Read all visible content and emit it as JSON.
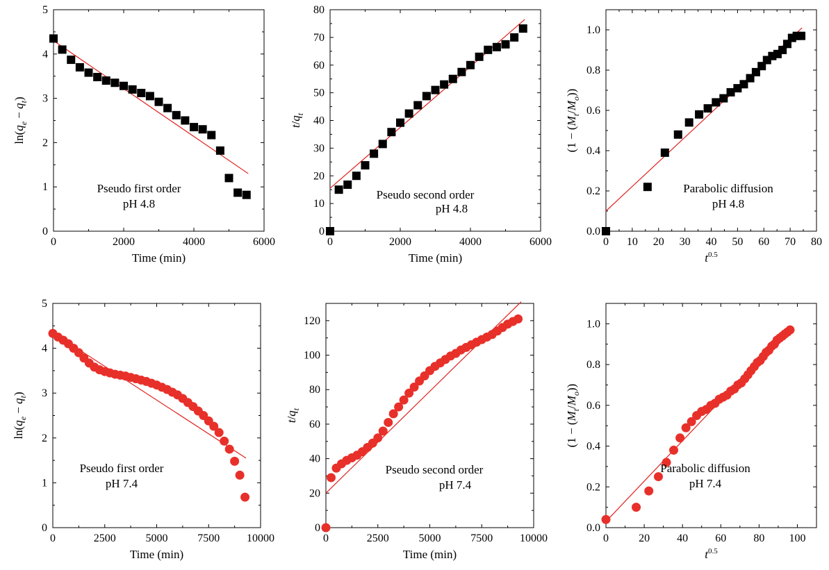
{
  "colors": {
    "series_pH48": "#000000",
    "series_pH74": "#e8302a",
    "fit_line": "#e0201c"
  },
  "chart_data": [
    {
      "type": "scatter",
      "marker": "square",
      "xlabel": "Time (min)",
      "ylabel": "ln(q_e − q_t)",
      "xlim": [
        0,
        6000
      ],
      "ylim": [
        0,
        5
      ],
      "xticks": [
        0,
        2000,
        4000,
        6000
      ],
      "yticks": [
        0,
        1,
        2,
        3,
        4,
        5
      ],
      "annotation": [
        "Pseudo first order",
        "pH 4.8"
      ],
      "x": [
        0,
        250,
        500,
        750,
        1000,
        1250,
        1500,
        1750,
        2000,
        2250,
        2500,
        2750,
        3000,
        3250,
        3500,
        3750,
        4000,
        4250,
        4500,
        4750,
        5000,
        5250,
        5500
      ],
      "y": [
        4.35,
        4.1,
        3.87,
        3.7,
        3.58,
        3.48,
        3.4,
        3.35,
        3.28,
        3.2,
        3.12,
        3.05,
        2.92,
        2.78,
        2.62,
        2.5,
        2.35,
        2.3,
        2.17,
        1.82,
        1.2,
        0.87,
        0.82
      ],
      "fit": [
        [
          0,
          4.3
        ],
        [
          5550,
          1.3
        ]
      ]
    },
    {
      "type": "scatter",
      "marker": "square",
      "xlabel": "Time (min)",
      "ylabel": "t/q_t",
      "xlim": [
        0,
        6000
      ],
      "ylim": [
        0,
        80
      ],
      "xticks": [
        0,
        2000,
        4000,
        6000
      ],
      "yticks": [
        0,
        10,
        20,
        30,
        40,
        50,
        60,
        70,
        80
      ],
      "annotation": [
        "Pseudo second order",
        "pH 4.8"
      ],
      "x": [
        0,
        250,
        500,
        750,
        1000,
        1250,
        1500,
        1750,
        2000,
        2250,
        2500,
        2750,
        3000,
        3250,
        3500,
        3750,
        4000,
        4250,
        4500,
        4750,
        5000,
        5250,
        5500
      ],
      "y": [
        0,
        15,
        16.8,
        20,
        23.8,
        28,
        31.5,
        35.8,
        39.2,
        42.5,
        45.5,
        48.8,
        51,
        53,
        55,
        57.5,
        60,
        63,
        65.5,
        66.5,
        67.5,
        70,
        73.2
      ],
      "fit": [
        [
          0,
          15.5
        ],
        [
          5550,
          76.5
        ]
      ]
    },
    {
      "type": "scatter",
      "marker": "square",
      "xlabel": "t^0.5",
      "ylabel": "(1 − (M_t/M_o))",
      "xlim": [
        0,
        80
      ],
      "ylim": [
        0,
        1.1
      ],
      "xticks": [
        0,
        10,
        20,
        30,
        40,
        50,
        60,
        70,
        80
      ],
      "yticks": [
        0.0,
        0.2,
        0.4,
        0.6,
        0.8,
        1.0
      ],
      "annotation": [
        "Parabolic diffusion",
        "pH 4.8"
      ],
      "x": [
        0,
        15.8,
        22.4,
        27.4,
        31.6,
        35.4,
        38.7,
        41.8,
        44.7,
        47.4,
        50,
        52.4,
        54.8,
        57,
        59.2,
        61.2,
        63.2,
        65.2,
        67.1,
        68.9,
        70.7,
        72.5,
        74.2
      ],
      "y": [
        0.0,
        0.22,
        0.39,
        0.48,
        0.54,
        0.58,
        0.61,
        0.64,
        0.66,
        0.69,
        0.71,
        0.73,
        0.76,
        0.79,
        0.82,
        0.85,
        0.87,
        0.88,
        0.9,
        0.93,
        0.96,
        0.97,
        0.97
      ],
      "fit": [
        [
          0,
          0.1
        ],
        [
          74.5,
          1.01
        ]
      ]
    },
    {
      "type": "scatter",
      "marker": "circle",
      "xlabel": "Time (min)",
      "ylabel": "ln(q_e − q_t)",
      "xlim": [
        0,
        10000
      ],
      "ylim": [
        0,
        5
      ],
      "xticks": [
        0,
        2500,
        5000,
        7500,
        10000
      ],
      "yticks": [
        0,
        1,
        2,
        3,
        4,
        5
      ],
      "annotation": [
        "Pseudo first order",
        "pH 7.4"
      ],
      "x": [
        0,
        250,
        500,
        750,
        1000,
        1250,
        1500,
        1750,
        2000,
        2250,
        2500,
        2750,
        3000,
        3250,
        3500,
        3750,
        4000,
        4250,
        4500,
        4750,
        5000,
        5250,
        5500,
        5750,
        6000,
        6250,
        6500,
        6750,
        7000,
        7250,
        7500,
        7750,
        8000,
        8250,
        8500,
        8750,
        9000,
        9250
      ],
      "y": [
        4.33,
        4.25,
        4.18,
        4.1,
        4.0,
        3.9,
        3.78,
        3.67,
        3.58,
        3.52,
        3.48,
        3.45,
        3.42,
        3.4,
        3.38,
        3.35,
        3.32,
        3.29,
        3.26,
        3.22,
        3.18,
        3.13,
        3.08,
        3.02,
        2.96,
        2.88,
        2.79,
        2.7,
        2.6,
        2.5,
        2.38,
        2.26,
        2.12,
        1.93,
        1.75,
        1.48,
        1.17,
        0.68
      ],
      "fit": [
        [
          0,
          4.35
        ],
        [
          9300,
          1.55
        ]
      ]
    },
    {
      "type": "scatter",
      "marker": "circle",
      "xlabel": "Time (min)",
      "ylabel": "t/q_t",
      "xlim": [
        0,
        10000
      ],
      "ylim": [
        0,
        130
      ],
      "xticks": [
        0,
        2500,
        5000,
        7500,
        10000
      ],
      "yticks": [
        0,
        20,
        40,
        60,
        80,
        100,
        120
      ],
      "annotation": [
        "Pseudo second order",
        "pH 7.4"
      ],
      "x": [
        0,
        250,
        500,
        750,
        1000,
        1250,
        1500,
        1750,
        2000,
        2250,
        2500,
        2750,
        3000,
        3250,
        3500,
        3750,
        4000,
        4250,
        4500,
        4750,
        5000,
        5250,
        5500,
        5750,
        6000,
        6250,
        6500,
        6750,
        7000,
        7250,
        7500,
        7750,
        8000,
        8250,
        8500,
        8750,
        9000,
        9250
      ],
      "y": [
        0,
        29,
        34.5,
        37,
        39,
        40.5,
        42,
        44,
        46.5,
        49,
        52,
        56,
        61,
        66,
        70,
        74,
        78,
        81.5,
        85,
        88,
        91,
        93.5,
        95.5,
        97.5,
        99.5,
        101,
        103,
        104.5,
        106,
        107.5,
        109,
        110.5,
        112,
        114,
        116,
        118,
        119.5,
        121
      ],
      "fit": [
        [
          0,
          20
        ],
        [
          9400,
          131
        ]
      ]
    },
    {
      "type": "scatter",
      "marker": "circle",
      "xlabel": "t^0.5",
      "ylabel": "(1 − (M_t/M_o))",
      "xlim": [
        0,
        110
      ],
      "ylim": [
        0,
        1.1
      ],
      "xticks": [
        0,
        20,
        40,
        60,
        80,
        100
      ],
      "yticks": [
        0.0,
        0.2,
        0.4,
        0.6,
        0.8,
        1.0
      ],
      "annotation": [
        "Parabolic diffusion",
        "pH 7.4"
      ],
      "x": [
        0,
        15.8,
        22.4,
        27.4,
        31.6,
        35.4,
        38.7,
        41.8,
        44.7,
        47.4,
        50,
        52.4,
        54.8,
        57,
        59.2,
        61.2,
        63.2,
        65.2,
        67.1,
        68.9,
        70.7,
        72.5,
        74.2,
        75.8,
        77.5,
        79.1,
        80.6,
        82.2,
        83.7,
        85.1,
        86.6,
        88,
        89.4,
        90.8,
        92.2,
        93.5,
        94.9,
        96.2
      ],
      "y": [
        0.04,
        0.1,
        0.18,
        0.25,
        0.32,
        0.38,
        0.44,
        0.49,
        0.52,
        0.55,
        0.57,
        0.58,
        0.6,
        0.61,
        0.63,
        0.64,
        0.65,
        0.67,
        0.68,
        0.7,
        0.71,
        0.73,
        0.75,
        0.77,
        0.79,
        0.81,
        0.82,
        0.84,
        0.86,
        0.87,
        0.89,
        0.9,
        0.92,
        0.93,
        0.94,
        0.95,
        0.96,
        0.97
      ],
      "fit": [
        [
          0,
          0.03
        ],
        [
          96,
          0.98
        ]
      ]
    }
  ]
}
